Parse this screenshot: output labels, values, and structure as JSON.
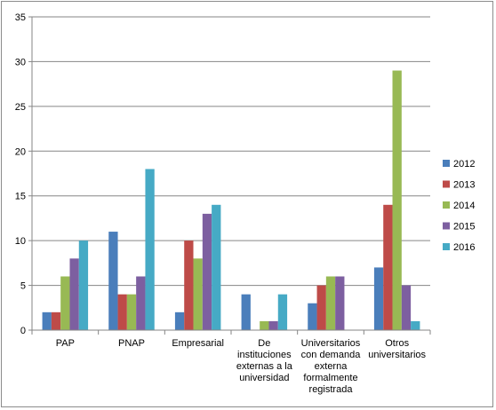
{
  "chart_data": {
    "type": "bar",
    "categories": [
      [
        "PAP"
      ],
      [
        "PNAP"
      ],
      [
        "Empresarial"
      ],
      [
        "De",
        "instituciones",
        "externas a la",
        "universidad"
      ],
      [
        "Universitarios",
        "con demanda",
        "externa",
        "formalmente",
        "registrada"
      ],
      [
        "Otros",
        "universitarios"
      ]
    ],
    "series": [
      {
        "name": "2012",
        "color": "#4a7ebb",
        "values": [
          2,
          11,
          2,
          4,
          3,
          7
        ]
      },
      {
        "name": "2013",
        "color": "#be4b48",
        "values": [
          2,
          4,
          10,
          0,
          5,
          14
        ]
      },
      {
        "name": "2014",
        "color": "#98b954",
        "values": [
          6,
          4,
          8,
          1,
          6,
          29
        ]
      },
      {
        "name": "2015",
        "color": "#7d5fa0",
        "values": [
          8,
          6,
          13,
          1,
          6,
          5
        ]
      },
      {
        "name": "2016",
        "color": "#46aac5",
        "values": [
          10,
          18,
          14,
          4,
          0,
          1
        ]
      }
    ],
    "ylim": [
      0,
      35
    ],
    "yticks": [
      0,
      5,
      10,
      15,
      20,
      25,
      30,
      35
    ],
    "grid": true,
    "legend": "right"
  }
}
